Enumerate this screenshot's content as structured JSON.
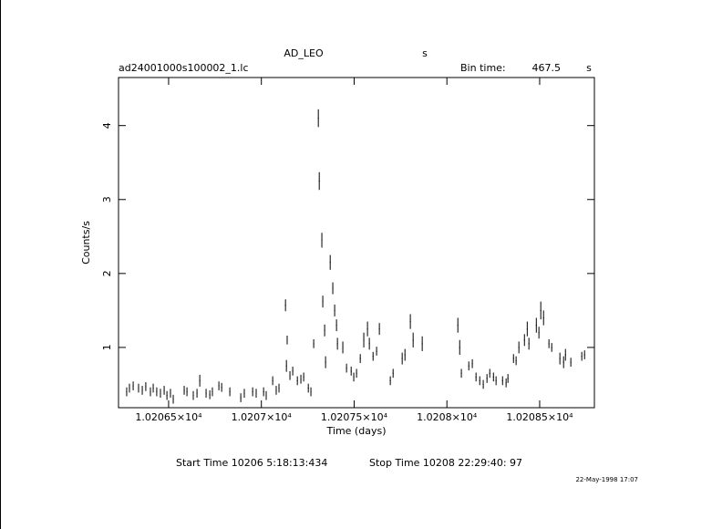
{
  "chart_data": {
    "type": "scatter",
    "title": "AD_LEO",
    "title_unit": "s",
    "file_name": "ad24001000s100002_1.lc",
    "bin_time_label": "Bin time:",
    "bin_time": 467.5,
    "bin_time_unit": "s",
    "xlabel": "Time (days)",
    "ylabel": "Counts/s",
    "start_time": "Start Time 10206  5:18:13:434",
    "stop_time": "Stop Time 10208 22:29:40: 97",
    "date": "22-May-1998 17:07",
    "color": "#000000",
    "xlim": [
      10206.23,
      10208.795
    ],
    "xticks": [
      {
        "value": 10206.5,
        "label": "1.02065×10⁴"
      },
      {
        "value": 10207,
        "label": "1.0207×10⁴"
      },
      {
        "value": 10207.5,
        "label": "1.02075×10⁴"
      },
      {
        "value": 10208,
        "label": "1.0208×10⁴"
      },
      {
        "value": 10208.5,
        "label": "1.02085×10⁴"
      }
    ],
    "ylim": [
      0.185,
      4.65
    ],
    "yticks": [
      1,
      2,
      3,
      4
    ],
    "x": [
      10206.274,
      10206.289,
      10206.309,
      10206.338,
      10206.358,
      10206.377,
      10206.402,
      10206.417,
      10206.436,
      10206.456,
      10206.476,
      10206.491,
      10206.51,
      10206.525,
      10206.584,
      10206.599,
      10206.633,
      10206.653,
      10206.668,
      10206.702,
      10206.722,
      10206.736,
      10206.771,
      10206.786,
      10206.83,
      10206.889,
      10206.908,
      10206.953,
      10206.972,
      10207.012,
      10207.026,
      10207.061,
      10207.08,
      10207.095,
      10207.13,
      10207.135,
      10207.139,
      10207.154,
      10207.169,
      10207.194,
      10207.213,
      10207.228,
      10207.253,
      10207.267,
      10207.282,
      10207.307,
      10207.312,
      10207.326,
      10207.331,
      10207.341,
      10207.346,
      10207.371,
      10207.385,
      10207.395,
      10207.405,
      10207.41,
      10207.439,
      10207.459,
      10207.484,
      10207.498,
      10207.513,
      10207.533,
      10207.552,
      10207.572,
      10207.582,
      10207.602,
      10207.621,
      10207.636,
      10207.695,
      10207.71,
      10207.759,
      10207.774,
      10207.803,
      10207.818,
      10207.867,
      10208.059,
      10208.069,
      10208.078,
      10208.118,
      10208.137,
      10208.157,
      10208.177,
      10208.196,
      10208.216,
      10208.231,
      10208.251,
      10208.265,
      10208.3,
      10208.319,
      10208.329,
      10208.359,
      10208.373,
      10208.388,
      10208.418,
      10208.433,
      10208.442,
      10208.482,
      10208.496,
      10208.506,
      10208.521,
      10208.55,
      10208.565,
      10208.609,
      10208.629,
      10208.639,
      10208.668,
      10208.727,
      10208.742
    ],
    "values": [
      0.4,
      0.45,
      0.48,
      0.45,
      0.42,
      0.47,
      0.4,
      0.45,
      0.4,
      0.38,
      0.42,
      0.35,
      0.38,
      0.3,
      0.42,
      0.4,
      0.35,
      0.38,
      0.55,
      0.38,
      0.36,
      0.4,
      0.48,
      0.46,
      0.4,
      0.32,
      0.38,
      0.4,
      0.38,
      0.4,
      0.35,
      0.55,
      0.42,
      0.45,
      1.57,
      0.75,
      1.1,
      0.62,
      0.68,
      0.55,
      0.57,
      0.6,
      0.45,
      0.4,
      1.05,
      4.1,
      3.25,
      2.45,
      1.62,
      1.23,
      0.8,
      2.15,
      1.8,
      1.5,
      1.3,
      1.05,
      1.0,
      0.72,
      0.68,
      0.6,
      0.65,
      0.85,
      1.1,
      1.25,
      1.05,
      0.88,
      0.95,
      1.25,
      0.55,
      0.65,
      0.85,
      0.9,
      1.35,
      1.1,
      1.05,
      1.3,
      1.0,
      0.65,
      0.75,
      0.78,
      0.6,
      0.55,
      0.5,
      0.58,
      0.65,
      0.6,
      0.55,
      0.55,
      0.52,
      0.58,
      0.85,
      0.82,
      1.0,
      1.1,
      1.25,
      1.05,
      1.3,
      1.2,
      1.5,
      1.4,
      1.05,
      1.0,
      0.85,
      0.8,
      0.9,
      0.8,
      0.88,
      0.9
    ],
    "errors": [
      0.06,
      0.06,
      0.06,
      0.06,
      0.06,
      0.06,
      0.06,
      0.06,
      0.06,
      0.06,
      0.06,
      0.06,
      0.06,
      0.06,
      0.06,
      0.06,
      0.06,
      0.06,
      0.08,
      0.06,
      0.06,
      0.06,
      0.06,
      0.06,
      0.06,
      0.06,
      0.06,
      0.06,
      0.06,
      0.06,
      0.06,
      0.06,
      0.06,
      0.06,
      0.08,
      0.08,
      0.06,
      0.06,
      0.06,
      0.06,
      0.06,
      0.06,
      0.06,
      0.06,
      0.06,
      0.12,
      0.12,
      0.1,
      0.08,
      0.08,
      0.08,
      0.1,
      0.08,
      0.08,
      0.08,
      0.08,
      0.08,
      0.06,
      0.06,
      0.06,
      0.06,
      0.06,
      0.1,
      0.1,
      0.08,
      0.06,
      0.06,
      0.08,
      0.06,
      0.06,
      0.08,
      0.08,
      0.1,
      0.1,
      0.1,
      0.1,
      0.1,
      0.06,
      0.06,
      0.06,
      0.06,
      0.06,
      0.06,
      0.06,
      0.06,
      0.06,
      0.06,
      0.06,
      0.06,
      0.06,
      0.06,
      0.06,
      0.08,
      0.08,
      0.1,
      0.08,
      0.1,
      0.08,
      0.12,
      0.1,
      0.06,
      0.06,
      0.08,
      0.08,
      0.08,
      0.06,
      0.06,
      0.06
    ]
  }
}
